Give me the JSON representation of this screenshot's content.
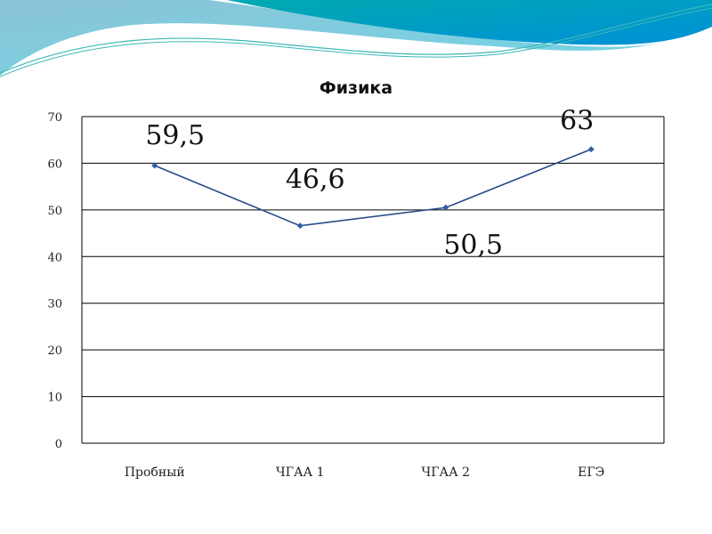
{
  "chart_data": {
    "type": "line",
    "title": "Физика",
    "categories": [
      "Пробный",
      "ЧГАА 1",
      "ЧГАА 2",
      "ЕГЭ"
    ],
    "series": [
      {
        "values": [
          59.5,
          46.6,
          50.5,
          63
        ],
        "data_labels": [
          "59,5",
          "46,6",
          "50,5",
          "63"
        ]
      }
    ],
    "ylim": [
      0,
      70
    ],
    "yticks": [
      0,
      10,
      20,
      30,
      40,
      50,
      60,
      70
    ],
    "grid": true,
    "legend": "none",
    "colors": {
      "line": "#2a4a8a",
      "marker": "#2e5fa8",
      "grid": "#000000"
    }
  }
}
